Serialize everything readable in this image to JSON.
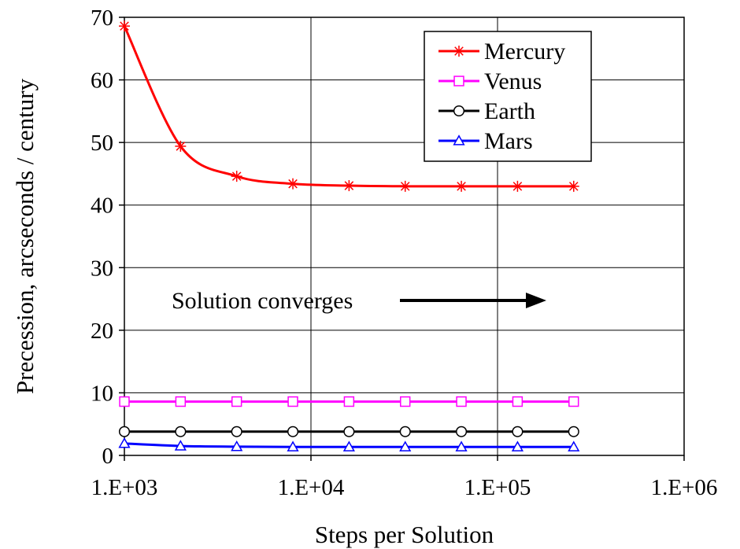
{
  "chart_data": {
    "type": "line",
    "xlabel": "Steps per Solution",
    "ylabel": "Precession,  arcseconds / century",
    "xscale": "log",
    "xlim": [
      1000,
      1000000
    ],
    "ylim": [
      0,
      70
    ],
    "x_ticks": [
      1000,
      10000,
      100000,
      1000000
    ],
    "x_tick_labels": [
      "1.E+03",
      "1.E+04",
      "1.E+05",
      "1.E+06"
    ],
    "y_ticks": [
      0,
      10,
      20,
      30,
      40,
      50,
      60,
      70
    ],
    "y_tick_labels": [
      "0",
      "10",
      "20",
      "30",
      "40",
      "50",
      "60",
      "70"
    ],
    "grid": true,
    "legend_position": "top-right",
    "x": [
      1000,
      2000,
      4000,
      8000,
      16000,
      32000,
      64000,
      128000,
      256000
    ],
    "series": [
      {
        "name": "Mercury",
        "color": "#ff0000",
        "marker": "asterisk",
        "values": [
          68.6,
          49.4,
          44.6,
          43.4,
          43.1,
          43.0,
          43.0,
          43.0,
          43.0
        ]
      },
      {
        "name": "Venus",
        "color": "#ff00ff",
        "marker": "square",
        "values": [
          8.6,
          8.6,
          8.6,
          8.6,
          8.6,
          8.6,
          8.6,
          8.6,
          8.6
        ]
      },
      {
        "name": "Earth",
        "color": "#000000",
        "marker": "circle",
        "values": [
          3.8,
          3.8,
          3.8,
          3.8,
          3.8,
          3.8,
          3.8,
          3.8,
          3.8
        ]
      },
      {
        "name": "Mars",
        "color": "#0000ff",
        "marker": "triangle",
        "values": [
          1.9,
          1.5,
          1.4,
          1.35,
          1.35,
          1.35,
          1.35,
          1.35,
          1.35
        ]
      }
    ],
    "annotation": {
      "text": "Solution converges",
      "arrow": "right"
    }
  }
}
